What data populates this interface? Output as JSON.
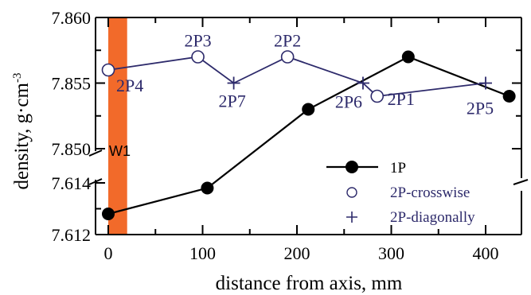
{
  "chart_data": {
    "type": "line",
    "xlabel": "distance from axis, mm",
    "ylabel": "density, g·cm",
    "ylabel_sup": "-3",
    "x_ticks": [
      "0",
      "100",
      "200",
      "300",
      "400"
    ],
    "y_ticks_upper": [
      "7.860",
      "7.855",
      "7.850"
    ],
    "y_ticks_lower": [
      "7.614",
      "7.612"
    ],
    "xlim": [
      -10,
      440
    ],
    "ylim_upper": [
      7.85,
      7.86
    ],
    "ylim_lower": [
      7.612,
      7.614
    ],
    "band": {
      "label": "W1",
      "x_range": [
        0,
        20
      ],
      "color": "#f26a2a"
    },
    "series": [
      {
        "name": "1P",
        "marker": "filled-circle",
        "color": "#000000",
        "scale": "lower+upper",
        "points": [
          {
            "x": 0,
            "y": 7.6128,
            "axis": "lower"
          },
          {
            "x": 105,
            "y": 7.6138,
            "axis": "lower"
          },
          {
            "x": 212,
            "y": 7.853,
            "axis": "upper"
          },
          {
            "x": 318,
            "y": 7.857,
            "axis": "upper"
          },
          {
            "x": 425,
            "y": 7.854,
            "axis": "upper"
          }
        ]
      },
      {
        "name": "2P-crosswise",
        "marker": "open-circle",
        "color": "#2d2a6b",
        "points": [
          {
            "x": 0,
            "y": 7.856,
            "label": "2P4"
          },
          {
            "x": 95,
            "y": 7.857,
            "label": "2P3"
          },
          {
            "x": 190,
            "y": 7.857,
            "label": "2P2"
          },
          {
            "x": 285,
            "y": 7.854,
            "label": "2P1"
          }
        ]
      },
      {
        "name": "2P-diagonally",
        "marker": "plus",
        "color": "#2d2a6b",
        "points": [
          {
            "x": 133,
            "y": 7.855,
            "label": "2P7"
          },
          {
            "x": 270,
            "y": 7.855,
            "label": "2P6"
          },
          {
            "x": 400,
            "y": 7.855,
            "label": "2P5"
          }
        ]
      }
    ],
    "connected_path_2p": [
      "2P4",
      "2P3",
      "2P7",
      "2P2",
      "2P6",
      "2P1",
      "2P5"
    ],
    "legend": {
      "placement": "bottom-right",
      "entries": [
        "1P",
        "2P-crosswise",
        "2P-diagonally"
      ]
    },
    "grid": false
  }
}
